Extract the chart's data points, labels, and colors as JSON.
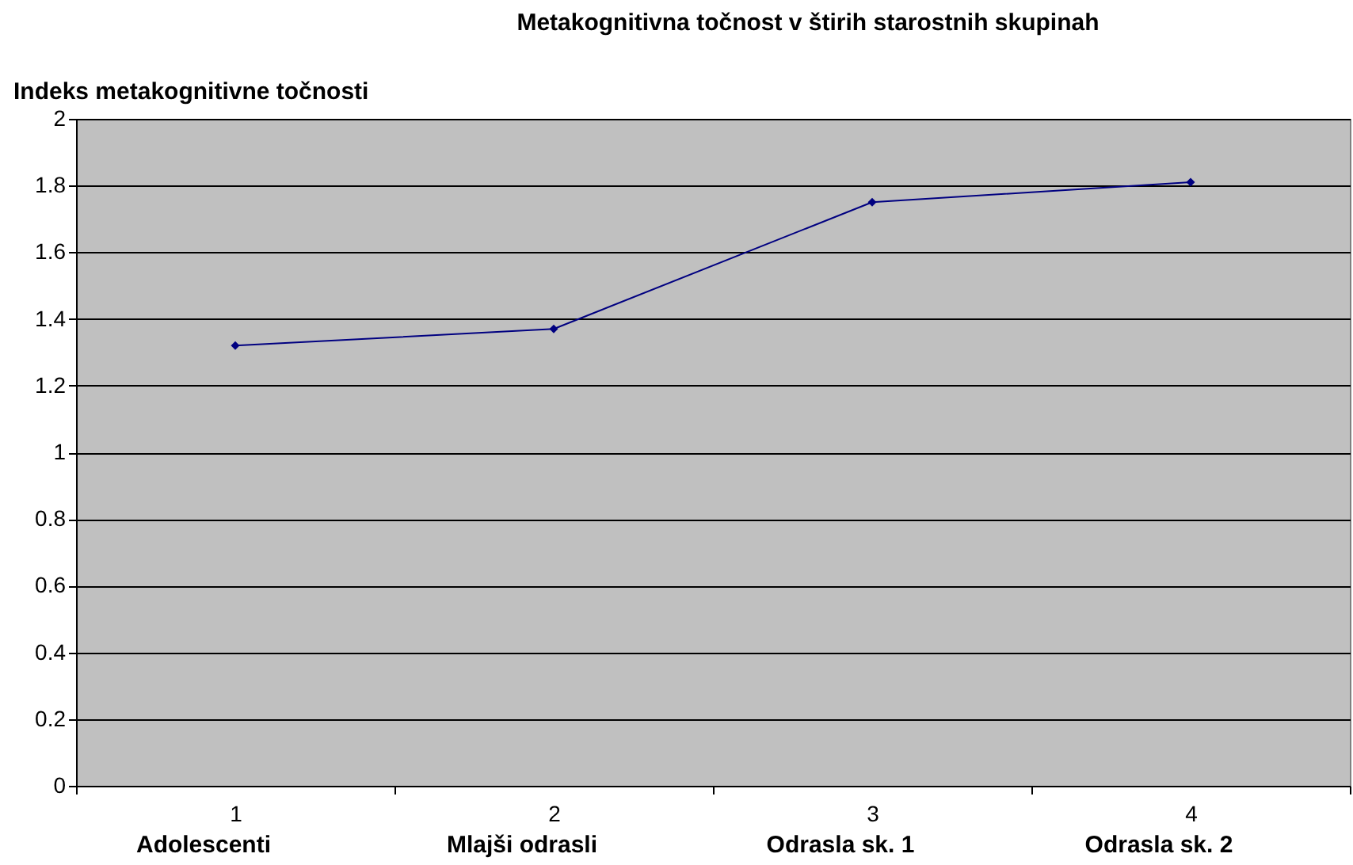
{
  "chart_data": {
    "type": "line",
    "title": "Metakognitivna točnost v štirih starostnih skupinah",
    "ylabel": "Indeks metakognitivne točnosti",
    "categories": [
      "1",
      "2",
      "3",
      "4"
    ],
    "series": [
      {
        "color": "#000080",
        "values": [
          1.32,
          1.37,
          1.75,
          1.81
        ]
      }
    ],
    "ylim": [
      0,
      2
    ],
    "yticks": [
      0,
      0.2,
      0.4,
      0.6,
      0.8,
      1,
      1.2,
      1.4,
      1.6,
      1.8,
      2
    ],
    "grid": "y",
    "marker": "diamond",
    "line_style": "solid",
    "annotations": [
      "Adolescenti",
      "Mlajši odrasli",
      "Odrasla sk. 1",
      "Odrasla sk. 2"
    ]
  }
}
